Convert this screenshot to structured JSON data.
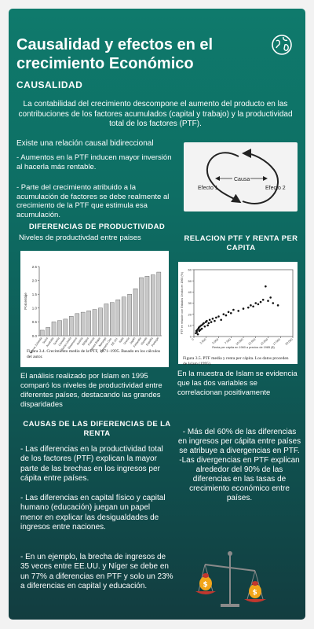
{
  "header": {
    "title": "Causalidad y efectos en el crecimiento Económico",
    "icon": "globe-icon"
  },
  "causalidad": {
    "heading": "CAUSALIDAD",
    "intro": "La contabilidad del crecimiento descompone el aumento del producto en las contribuciones de los factores acumulados (capital y trabajo) y la productividad total de los factores (PTF).",
    "relation": "Existe una relación causal bidireccional",
    "point1": "- Aumentos en la PTF inducen mayor inversión al hacerla más rentable.",
    "point2": "- Parte del crecimiento atribuido a la acumulación de factores se debe realmente al crecimiento de la PTF que estimula esa acumulación.",
    "diagram": {
      "left": "Efecto 1",
      "center": "Causa",
      "right": "Efecto 2"
    }
  },
  "diferencias": {
    "heading": "DIFERENCIAS DE PRODUCTIVIDAD",
    "subtitle": "Niveles de productivdad entre paises",
    "caption": "Figura 3.4. Crecimiento medio de la PTF, 1971–1995. Basado en los cálculos del autor.",
    "text": "El análisis realizado por Islam en 1995 comparó los niveles de productividad entre diferentes países, destacando las grandes disparidades"
  },
  "relacion": {
    "heading": "RELACION PTF Y RENTA PER CAPITA",
    "caption": "Figura 3.5. PTF media y renta per cápita. Los datos proceden de Islam (1995).",
    "text": "En la muestra de Islam se evidencia que las dos variables se correlacionan positivamente"
  },
  "causas": {
    "heading": "CAUSAS DE LAS DIFERENCIAS DE LA RENTA",
    "p1": "- Las diferencias en la productividad total de los factores (PTF) explican la mayor parte de las brechas en los ingresos per cápita entre países.",
    "p2": "- Las diferencias en capital físico y capital humano (educación) juegan un papel menor en explicar las desigualdades de ingresos entre naciones.",
    "p3": "- En un ejemplo, la brecha de ingresos de 35 veces entre EE.UU. y Níger se debe en un 77% a diferencias en PTF y solo un 23% a diferencias en capital y educación.",
    "right": "- Más del 60% de las diferencias en ingresos per cápita entre países se atribuye a divergencias en PTF.\n-Las divergencias en PTF explican alrededor del 90% de las diferencias en las tasas de crecimiento económico entre países.",
    "icon": "balance-scale-money-icon"
  },
  "chart_data": [
    {
      "type": "bar",
      "ylabel": "Porcentaje",
      "ylim": [
        0,
        2.5
      ],
      "yticks": [
        0,
        0.5,
        1.0,
        1.5,
        2.0,
        2.5
      ],
      "categories": [
        "Nueva Zelanda",
        "Suiza",
        "Australia",
        "Suecia",
        "Canadá",
        "Reino Unido",
        "Dinamarca",
        "Austria",
        "Bélgica",
        "Francia",
        "Países Bajos",
        "Noruega",
        "Alemania Occ.",
        "EE.UU.",
        "Italia",
        "Grecia",
        "Japón",
        "Finlandia",
        "Irlanda",
        "España",
        "Portugal"
      ],
      "values": [
        0.2,
        0.3,
        0.5,
        0.55,
        0.6,
        0.7,
        0.8,
        0.85,
        0.9,
        0.95,
        1.0,
        1.15,
        1.2,
        1.3,
        1.4,
        1.5,
        1.7,
        2.1,
        2.15,
        2.2,
        2.3
      ]
    },
    {
      "type": "scatter",
      "xlabel": "Renta per cápita en 1960 a precios de 1985 ($)",
      "ylabel": "PTF en relación con Estados Unidos en 1960 (%)",
      "xlim": [
        0,
        20000
      ],
      "ylim": [
        0,
        60
      ],
      "xticks": [
        0,
        2500,
        5000,
        7500,
        10000,
        12500,
        15000,
        17500,
        20000
      ],
      "xtick_labels": [
        "0",
        "2.500",
        "5.000",
        "7.500",
        "10.000",
        "12.500",
        "15.000",
        "17.500",
        "20.000"
      ],
      "yticks": [
        0,
        10,
        20,
        30,
        40,
        50,
        60
      ],
      "x": [
        400,
        500,
        600,
        700,
        800,
        900,
        1000,
        1100,
        1200,
        1300,
        1500,
        1600,
        1800,
        2000,
        2200,
        2400,
        2600,
        2800,
        3000,
        3200,
        3500,
        3800,
        4200,
        4500,
        5000,
        5500,
        6000,
        6500,
        7000,
        7500,
        8000,
        9000,
        10000,
        11000,
        11500,
        12000,
        12500,
        13000,
        13500,
        14000,
        15000,
        15500,
        16000,
        17000,
        14500
      ],
      "y": [
        3,
        5,
        4,
        6,
        2,
        7,
        8,
        5,
        9,
        6,
        10,
        7,
        11,
        12,
        9,
        13,
        14,
        10,
        12,
        15,
        13,
        16,
        14,
        17,
        18,
        15,
        20,
        19,
        22,
        21,
        24,
        23,
        25,
        26,
        28,
        27,
        30,
        29,
        31,
        33,
        32,
        35,
        30,
        28,
        45
      ]
    }
  ]
}
